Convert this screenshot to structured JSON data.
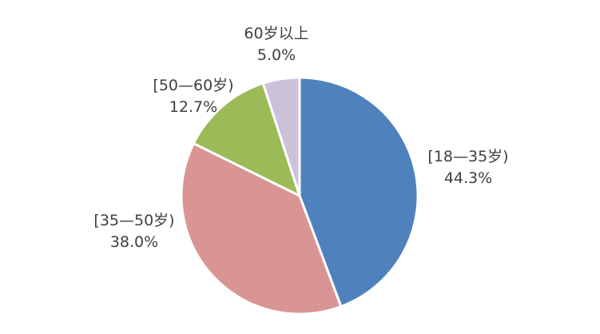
{
  "chart_data": {
    "type": "pie",
    "title": "",
    "categories": [
      "[18—35岁)",
      "[35—50岁)",
      "[50—60岁)",
      "60岁以上"
    ],
    "values": [
      44.3,
      38.0,
      12.7,
      5.0
    ],
    "value_labels": [
      "44.3%",
      "38.0%",
      "12.7%",
      "5.0%"
    ],
    "colors": [
      "#4f81bd",
      "#d99594",
      "#9bbb59",
      "#ccc1da"
    ],
    "start_angle": "12 o'clock",
    "direction": "clockwise",
    "legend": "none (data labels beside slices)"
  }
}
